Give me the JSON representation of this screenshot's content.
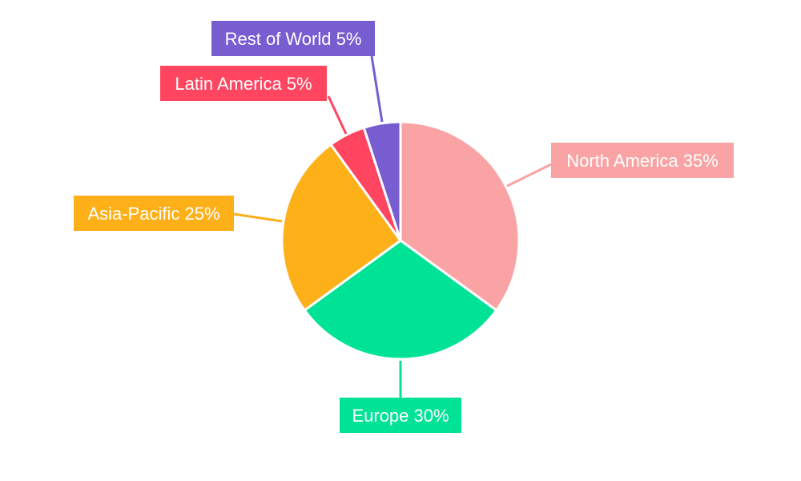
{
  "chart_data": {
    "type": "pie",
    "categories": [
      "North America",
      "Europe",
      "Asia-Pacific",
      "Latin America",
      "Rest of World"
    ],
    "values": [
      35,
      30,
      25,
      5,
      5
    ],
    "colors": [
      "#f9a3a4",
      "#00e396",
      "#feb019",
      "#ff4560",
      "#775dd0"
    ],
    "data_labels": [
      "North America 35%",
      "Europe 30%",
      "Asia-Pacific 25%",
      "Latin America 5%",
      "Rest of World 5%"
    ],
    "start_angle": "top, clockwise",
    "legend": "none"
  }
}
